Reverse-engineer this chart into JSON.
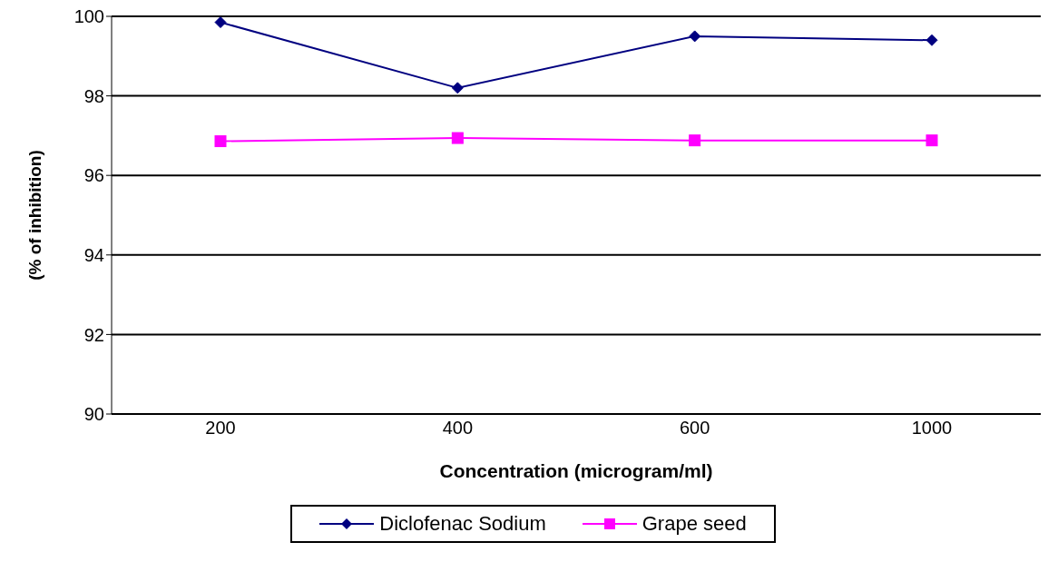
{
  "chart_data": {
    "type": "line",
    "xlabel": "Concentration (microgram/ml)",
    "ylabel": "(% of inhibition)",
    "categories": [
      "200",
      "400",
      "600",
      "1000"
    ],
    "series": [
      {
        "name": "Diclofenac Sodium",
        "color": "#000080",
        "marker": "diamond",
        "values": [
          99.85,
          98.2,
          99.5,
          99.4
        ]
      },
      {
        "name": "Grape seed",
        "color": "#ff00ff",
        "marker": "square",
        "values": [
          96.86,
          96.94,
          96.88,
          96.88
        ]
      }
    ],
    "ylim": [
      90,
      100
    ],
    "yticks": [
      90,
      92,
      94,
      96,
      98,
      100
    ],
    "grid": "y",
    "legend": "bottom"
  }
}
